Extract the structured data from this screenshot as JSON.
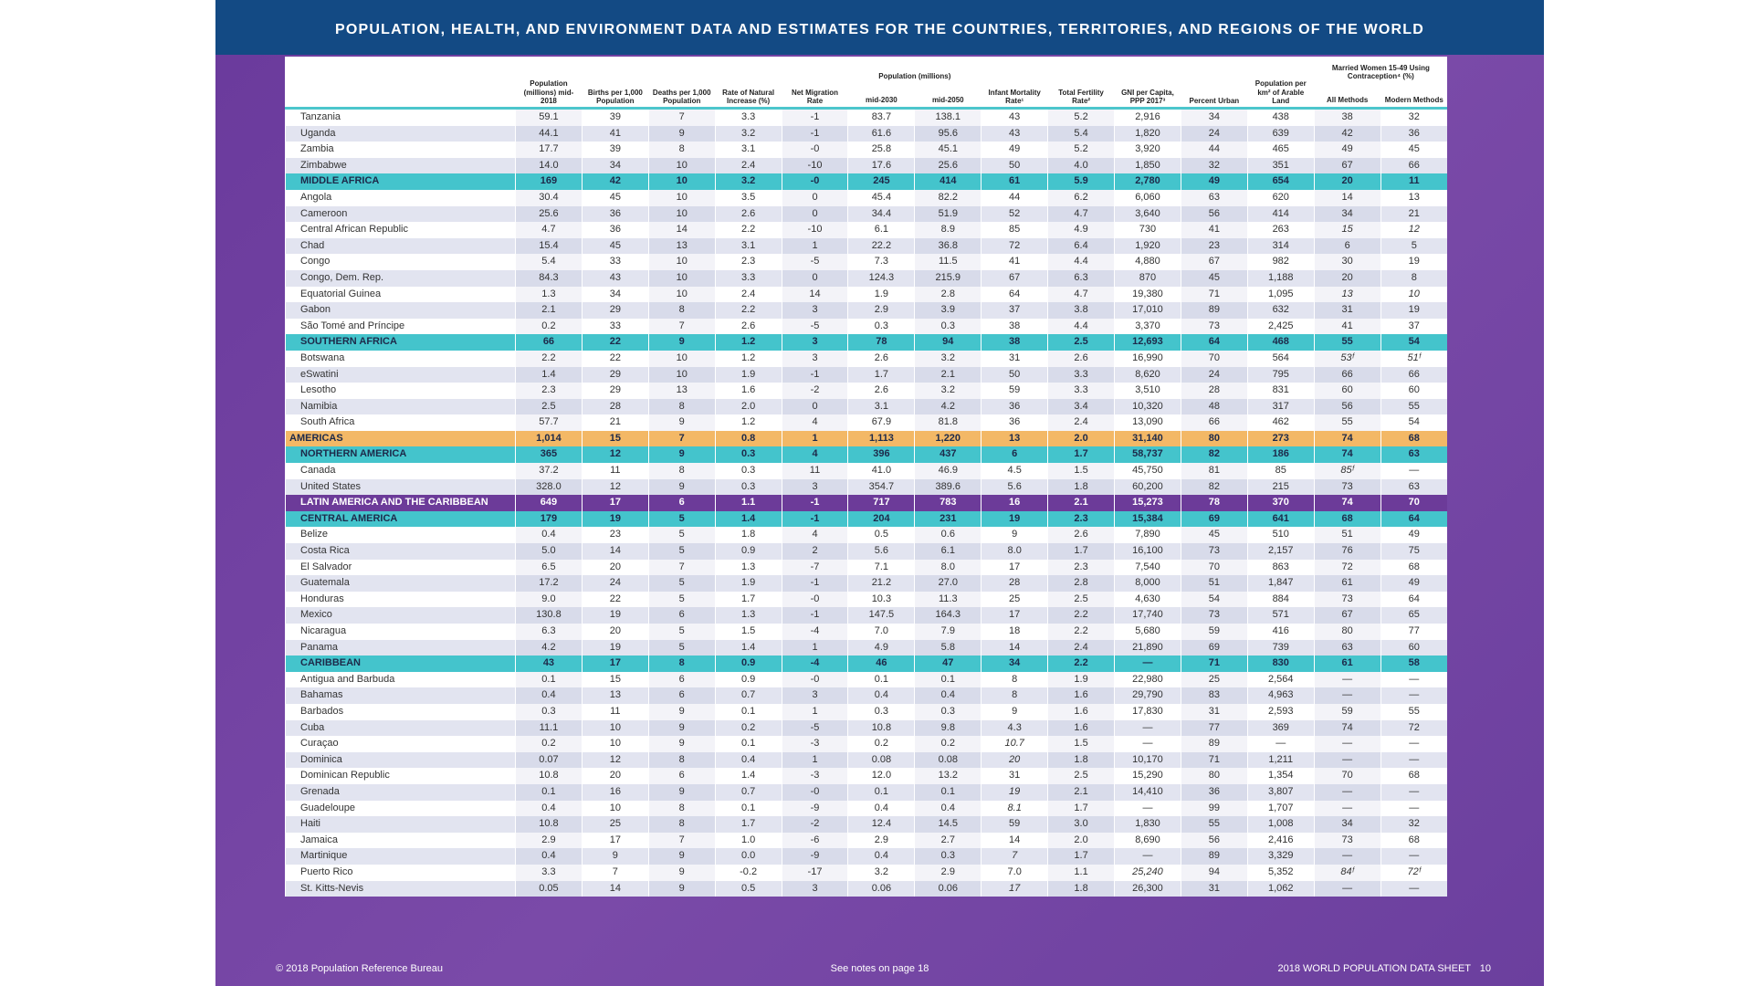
{
  "title": "POPULATION, HEALTH, AND ENVIRONMENT DATA AND ESTIMATES FOR THE COUNTRIES, TERRITORIES, AND REGIONS OF THE WORLD",
  "headers": {
    "pop": "Population (millions) mid-2018",
    "births": "Births per 1,000 Population",
    "deaths": "Deaths per 1,000 Population",
    "rni": "Rate of Natural Increase (%)",
    "netmig": "Net Migration Rate",
    "proj_group": "Population (millions)",
    "proj2030": "mid-2030",
    "proj2050": "mid-2050",
    "imr": "Infant Mortality Rate¹",
    "tfr": "Total Fertility Rate²",
    "gni": "GNI per Capita, PPP 2017³",
    "urban": "Percent Urban",
    "density": "Population per km² of Arable Land",
    "contra_group": "Married Women 15-49 Using Contraception⁴ (%)",
    "all": "All Methods",
    "modern": "Modern Methods"
  },
  "rows": [
    {
      "t": "c",
      "c": [
        "Tanzania",
        "59.1",
        "39",
        "7",
        "3.3",
        "-1",
        "83.7",
        "138.1",
        "43",
        "5.2",
        "2,916",
        "34",
        "438",
        "38",
        "32"
      ]
    },
    {
      "t": "c",
      "c": [
        "Uganda",
        "44.1",
        "41",
        "9",
        "3.2",
        "-1",
        "61.6",
        "95.6",
        "43",
        "5.4",
        "1,820",
        "24",
        "639",
        "42",
        "36"
      ]
    },
    {
      "t": "c",
      "c": [
        "Zambia",
        "17.7",
        "39",
        "8",
        "3.1",
        "-0",
        "25.8",
        "45.1",
        "49",
        "5.2",
        "3,920",
        "44",
        "465",
        "49",
        "45"
      ]
    },
    {
      "t": "c",
      "c": [
        "Zimbabwe",
        "14.0",
        "34",
        "10",
        "2.4",
        "-10",
        "17.6",
        "25.6",
        "50",
        "4.0",
        "1,850",
        "32",
        "351",
        "67",
        "66"
      ]
    },
    {
      "t": "teal",
      "c": [
        "MIDDLE AFRICA",
        "169",
        "42",
        "10",
        "3.2",
        "-0",
        "245",
        "414",
        "61",
        "5.9",
        "2,780",
        "49",
        "654",
        "20",
        "11"
      ]
    },
    {
      "t": "c",
      "c": [
        "Angola",
        "30.4",
        "45",
        "10",
        "3.5",
        "0",
        "45.4",
        "82.2",
        "44",
        "6.2",
        "6,060",
        "63",
        "620",
        "14",
        "13"
      ]
    },
    {
      "t": "c",
      "c": [
        "Cameroon",
        "25.6",
        "36",
        "10",
        "2.6",
        "0",
        "34.4",
        "51.9",
        "52",
        "4.7",
        "3,640",
        "56",
        "414",
        "34",
        "21"
      ]
    },
    {
      "t": "c",
      "c": [
        "Central African Republic",
        "4.7",
        "36",
        "14",
        "2.2",
        "-10",
        "6.1",
        "8.9",
        "85",
        "4.9",
        "730",
        "41",
        "263",
        "15",
        "12"
      ],
      "it": [
        13,
        14
      ]
    },
    {
      "t": "c",
      "c": [
        "Chad",
        "15.4",
        "45",
        "13",
        "3.1",
        "1",
        "22.2",
        "36.8",
        "72",
        "6.4",
        "1,920",
        "23",
        "314",
        "6",
        "5"
      ]
    },
    {
      "t": "c",
      "c": [
        "Congo",
        "5.4",
        "33",
        "10",
        "2.3",
        "-5",
        "7.3",
        "11.5",
        "41",
        "4.4",
        "4,880",
        "67",
        "982",
        "30",
        "19"
      ]
    },
    {
      "t": "c",
      "c": [
        "Congo, Dem. Rep.",
        "84.3",
        "43",
        "10",
        "3.3",
        "0",
        "124.3",
        "215.9",
        "67",
        "6.3",
        "870",
        "45",
        "1,188",
        "20",
        "8"
      ]
    },
    {
      "t": "c",
      "c": [
        "Equatorial Guinea",
        "1.3",
        "34",
        "10",
        "2.4",
        "14",
        "1.9",
        "2.8",
        "64",
        "4.7",
        "19,380",
        "71",
        "1,095",
        "13",
        "10"
      ],
      "it": [
        13,
        14
      ]
    },
    {
      "t": "c",
      "c": [
        "Gabon",
        "2.1",
        "29",
        "8",
        "2.2",
        "3",
        "2.9",
        "3.9",
        "37",
        "3.8",
        "17,010",
        "89",
        "632",
        "31",
        "19"
      ]
    },
    {
      "t": "c",
      "c": [
        "São Tomé and Príncipe",
        "0.2",
        "33",
        "7",
        "2.6",
        "-5",
        "0.3",
        "0.3",
        "38",
        "4.4",
        "3,370",
        "73",
        "2,425",
        "41",
        "37"
      ]
    },
    {
      "t": "teal",
      "c": [
        "SOUTHERN AFRICA",
        "66",
        "22",
        "9",
        "1.2",
        "3",
        "78",
        "94",
        "38",
        "2.5",
        "12,693",
        "64",
        "468",
        "55",
        "54"
      ]
    },
    {
      "t": "c",
      "c": [
        "Botswana",
        "2.2",
        "22",
        "10",
        "1.2",
        "3",
        "2.6",
        "3.2",
        "31",
        "2.6",
        "16,990",
        "70",
        "564",
        "53ᶠ",
        "51ᶠ"
      ],
      "it": [
        13,
        14
      ]
    },
    {
      "t": "c",
      "c": [
        "eSwatini",
        "1.4",
        "29",
        "10",
        "1.9",
        "-1",
        "1.7",
        "2.1",
        "50",
        "3.3",
        "8,620",
        "24",
        "795",
        "66",
        "66"
      ]
    },
    {
      "t": "c",
      "c": [
        "Lesotho",
        "2.3",
        "29",
        "13",
        "1.6",
        "-2",
        "2.6",
        "3.2",
        "59",
        "3.3",
        "3,510",
        "28",
        "831",
        "60",
        "60"
      ]
    },
    {
      "t": "c",
      "c": [
        "Namibia",
        "2.5",
        "28",
        "8",
        "2.0",
        "0",
        "3.1",
        "4.2",
        "36",
        "3.4",
        "10,320",
        "48",
        "317",
        "56",
        "55"
      ]
    },
    {
      "t": "c",
      "c": [
        "South Africa",
        "57.7",
        "21",
        "9",
        "1.2",
        "4",
        "67.9",
        "81.8",
        "36",
        "2.4",
        "13,090",
        "66",
        "462",
        "55",
        "54"
      ]
    },
    {
      "t": "orange",
      "c": [
        "AMERICAS",
        "1,014",
        "15",
        "7",
        "0.8",
        "1",
        "1,113",
        "1,220",
        "13",
        "2.0",
        "31,140",
        "80",
        "273",
        "74",
        "68"
      ]
    },
    {
      "t": "teal",
      "c": [
        "NORTHERN AMERICA",
        "365",
        "12",
        "9",
        "0.3",
        "4",
        "396",
        "437",
        "6",
        "1.7",
        "58,737",
        "82",
        "186",
        "74",
        "63"
      ]
    },
    {
      "t": "c",
      "c": [
        "Canada",
        "37.2",
        "11",
        "8",
        "0.3",
        "11",
        "41.0",
        "46.9",
        "4.5",
        "1.5",
        "45,750",
        "81",
        "85",
        "85ᶠ",
        "—"
      ],
      "it": [
        13
      ]
    },
    {
      "t": "c",
      "c": [
        "United States",
        "328.0",
        "12",
        "9",
        "0.3",
        "3",
        "354.7",
        "389.6",
        "5.6",
        "1.8",
        "60,200",
        "82",
        "215",
        "73",
        "63"
      ]
    },
    {
      "t": "purple",
      "c": [
        "LATIN AMERICA AND THE CARIBBEAN",
        "649",
        "17",
        "6",
        "1.1",
        "-1",
        "717",
        "783",
        "16",
        "2.1",
        "15,273",
        "78",
        "370",
        "74",
        "70"
      ]
    },
    {
      "t": "teal",
      "c": [
        "CENTRAL AMERICA",
        "179",
        "19",
        "5",
        "1.4",
        "-1",
        "204",
        "231",
        "19",
        "2.3",
        "15,384",
        "69",
        "641",
        "68",
        "64"
      ]
    },
    {
      "t": "c",
      "c": [
        "Belize",
        "0.4",
        "23",
        "5",
        "1.8",
        "4",
        "0.5",
        "0.6",
        "9",
        "2.6",
        "7,890",
        "45",
        "510",
        "51",
        "49"
      ]
    },
    {
      "t": "c",
      "c": [
        "Costa Rica",
        "5.0",
        "14",
        "5",
        "0.9",
        "2",
        "5.6",
        "6.1",
        "8.0",
        "1.7",
        "16,100",
        "73",
        "2,157",
        "76",
        "75"
      ]
    },
    {
      "t": "c",
      "c": [
        "El Salvador",
        "6.5",
        "20",
        "7",
        "1.3",
        "-7",
        "7.1",
        "8.0",
        "17",
        "2.3",
        "7,540",
        "70",
        "863",
        "72",
        "68"
      ]
    },
    {
      "t": "c",
      "c": [
        "Guatemala",
        "17.2",
        "24",
        "5",
        "1.9",
        "-1",
        "21.2",
        "27.0",
        "28",
        "2.8",
        "8,000",
        "51",
        "1,847",
        "61",
        "49"
      ]
    },
    {
      "t": "c",
      "c": [
        "Honduras",
        "9.0",
        "22",
        "5",
        "1.7",
        "-0",
        "10.3",
        "11.3",
        "25",
        "2.5",
        "4,630",
        "54",
        "884",
        "73",
        "64"
      ]
    },
    {
      "t": "c",
      "c": [
        "Mexico",
        "130.8",
        "19",
        "6",
        "1.3",
        "-1",
        "147.5",
        "164.3",
        "17",
        "2.2",
        "17,740",
        "73",
        "571",
        "67",
        "65"
      ]
    },
    {
      "t": "c",
      "c": [
        "Nicaragua",
        "6.3",
        "20",
        "5",
        "1.5",
        "-4",
        "7.0",
        "7.9",
        "18",
        "2.2",
        "5,680",
        "59",
        "416",
        "80",
        "77"
      ]
    },
    {
      "t": "c",
      "c": [
        "Panama",
        "4.2",
        "19",
        "5",
        "1.4",
        "1",
        "4.9",
        "5.8",
        "14",
        "2.4",
        "21,890",
        "69",
        "739",
        "63",
        "60"
      ]
    },
    {
      "t": "teal",
      "c": [
        "CARIBBEAN",
        "43",
        "17",
        "8",
        "0.9",
        "-4",
        "46",
        "47",
        "34",
        "2.2",
        "—",
        "71",
        "830",
        "61",
        "58"
      ]
    },
    {
      "t": "c",
      "c": [
        "Antigua and Barbuda",
        "0.1",
        "15",
        "6",
        "0.9",
        "-0",
        "0.1",
        "0.1",
        "8",
        "1.9",
        "22,980",
        "25",
        "2,564",
        "—",
        "—"
      ]
    },
    {
      "t": "c",
      "c": [
        "Bahamas",
        "0.4",
        "13",
        "6",
        "0.7",
        "3",
        "0.4",
        "0.4",
        "8",
        "1.6",
        "29,790",
        "83",
        "4,963",
        "—",
        "—"
      ]
    },
    {
      "t": "c",
      "c": [
        "Barbados",
        "0.3",
        "11",
        "9",
        "0.1",
        "1",
        "0.3",
        "0.3",
        "9",
        "1.6",
        "17,830",
        "31",
        "2,593",
        "59",
        "55"
      ]
    },
    {
      "t": "c",
      "c": [
        "Cuba",
        "11.1",
        "10",
        "9",
        "0.2",
        "-5",
        "10.8",
        "9.8",
        "4.3",
        "1.6",
        "—",
        "77",
        "369",
        "74",
        "72"
      ]
    },
    {
      "t": "c",
      "c": [
        "Curaçao",
        "0.2",
        "10",
        "9",
        "0.1",
        "-3",
        "0.2",
        "0.2",
        "10.7",
        "1.5",
        "—",
        "89",
        "—",
        "—",
        "—"
      ],
      "it": [
        8
      ]
    },
    {
      "t": "c",
      "c": [
        "Dominica",
        "0.07",
        "12",
        "8",
        "0.4",
        "1",
        "0.08",
        "0.08",
        "20",
        "1.8",
        "10,170",
        "71",
        "1,211",
        "—",
        "—"
      ],
      "it": [
        8
      ]
    },
    {
      "t": "c",
      "c": [
        "Dominican Republic",
        "10.8",
        "20",
        "6",
        "1.4",
        "-3",
        "12.0",
        "13.2",
        "31",
        "2.5",
        "15,290",
        "80",
        "1,354",
        "70",
        "68"
      ]
    },
    {
      "t": "c",
      "c": [
        "Grenada",
        "0.1",
        "16",
        "9",
        "0.7",
        "-0",
        "0.1",
        "0.1",
        "19",
        "2.1",
        "14,410",
        "36",
        "3,807",
        "—",
        "—"
      ],
      "it": [
        8
      ]
    },
    {
      "t": "c",
      "c": [
        "Guadeloupe",
        "0.4",
        "10",
        "8",
        "0.1",
        "-9",
        "0.4",
        "0.4",
        "8.1",
        "1.7",
        "—",
        "99",
        "1,707",
        "—",
        "—"
      ],
      "it": [
        8
      ]
    },
    {
      "t": "c",
      "c": [
        "Haiti",
        "10.8",
        "25",
        "8",
        "1.7",
        "-2",
        "12.4",
        "14.5",
        "59",
        "3.0",
        "1,830",
        "55",
        "1,008",
        "34",
        "32"
      ]
    },
    {
      "t": "c",
      "c": [
        "Jamaica",
        "2.9",
        "17",
        "7",
        "1.0",
        "-6",
        "2.9",
        "2.7",
        "14",
        "2.0",
        "8,690",
        "56",
        "2,416",
        "73",
        "68"
      ]
    },
    {
      "t": "c",
      "c": [
        "Martinique",
        "0.4",
        "9",
        "9",
        "0.0",
        "-9",
        "0.4",
        "0.3",
        "7",
        "1.7",
        "—",
        "89",
        "3,329",
        "—",
        "—"
      ],
      "it": [
        8
      ]
    },
    {
      "t": "c",
      "c": [
        "Puerto Rico",
        "3.3",
        "7",
        "9",
        "-0.2",
        "-17",
        "3.2",
        "2.9",
        "7.0",
        "1.1",
        "25,240",
        "94",
        "5,352",
        "84ᶠ",
        "72ᶠ"
      ],
      "it": [
        10,
        13,
        14
      ]
    },
    {
      "t": "c",
      "c": [
        "St. Kitts-Nevis",
        "0.05",
        "14",
        "9",
        "0.5",
        "3",
        "0.06",
        "0.06",
        "17",
        "1.8",
        "26,300",
        "31",
        "1,062",
        "—",
        "—"
      ],
      "it": [
        8
      ]
    }
  ],
  "footer": {
    "copyright": "© 2018 Population Reference Bureau",
    "notes": "See notes on page 18",
    "sheet": "2018 WORLD POPULATION DATA SHEET",
    "page": "10"
  }
}
